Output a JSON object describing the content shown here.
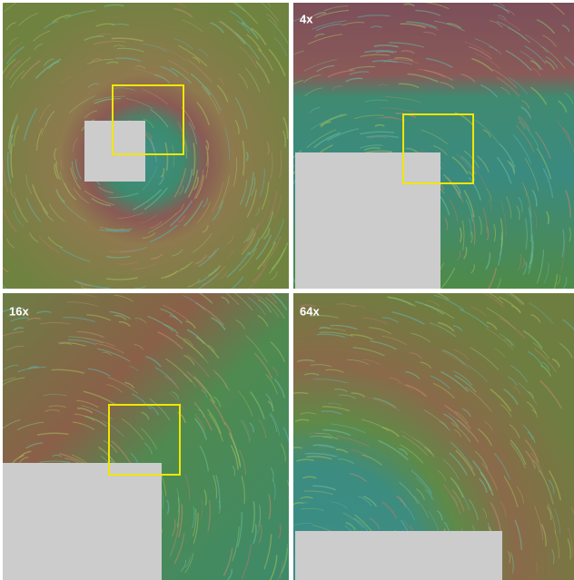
{
  "zoom_labels": [
    "4x",
    "16x",
    "64x"
  ]
}
